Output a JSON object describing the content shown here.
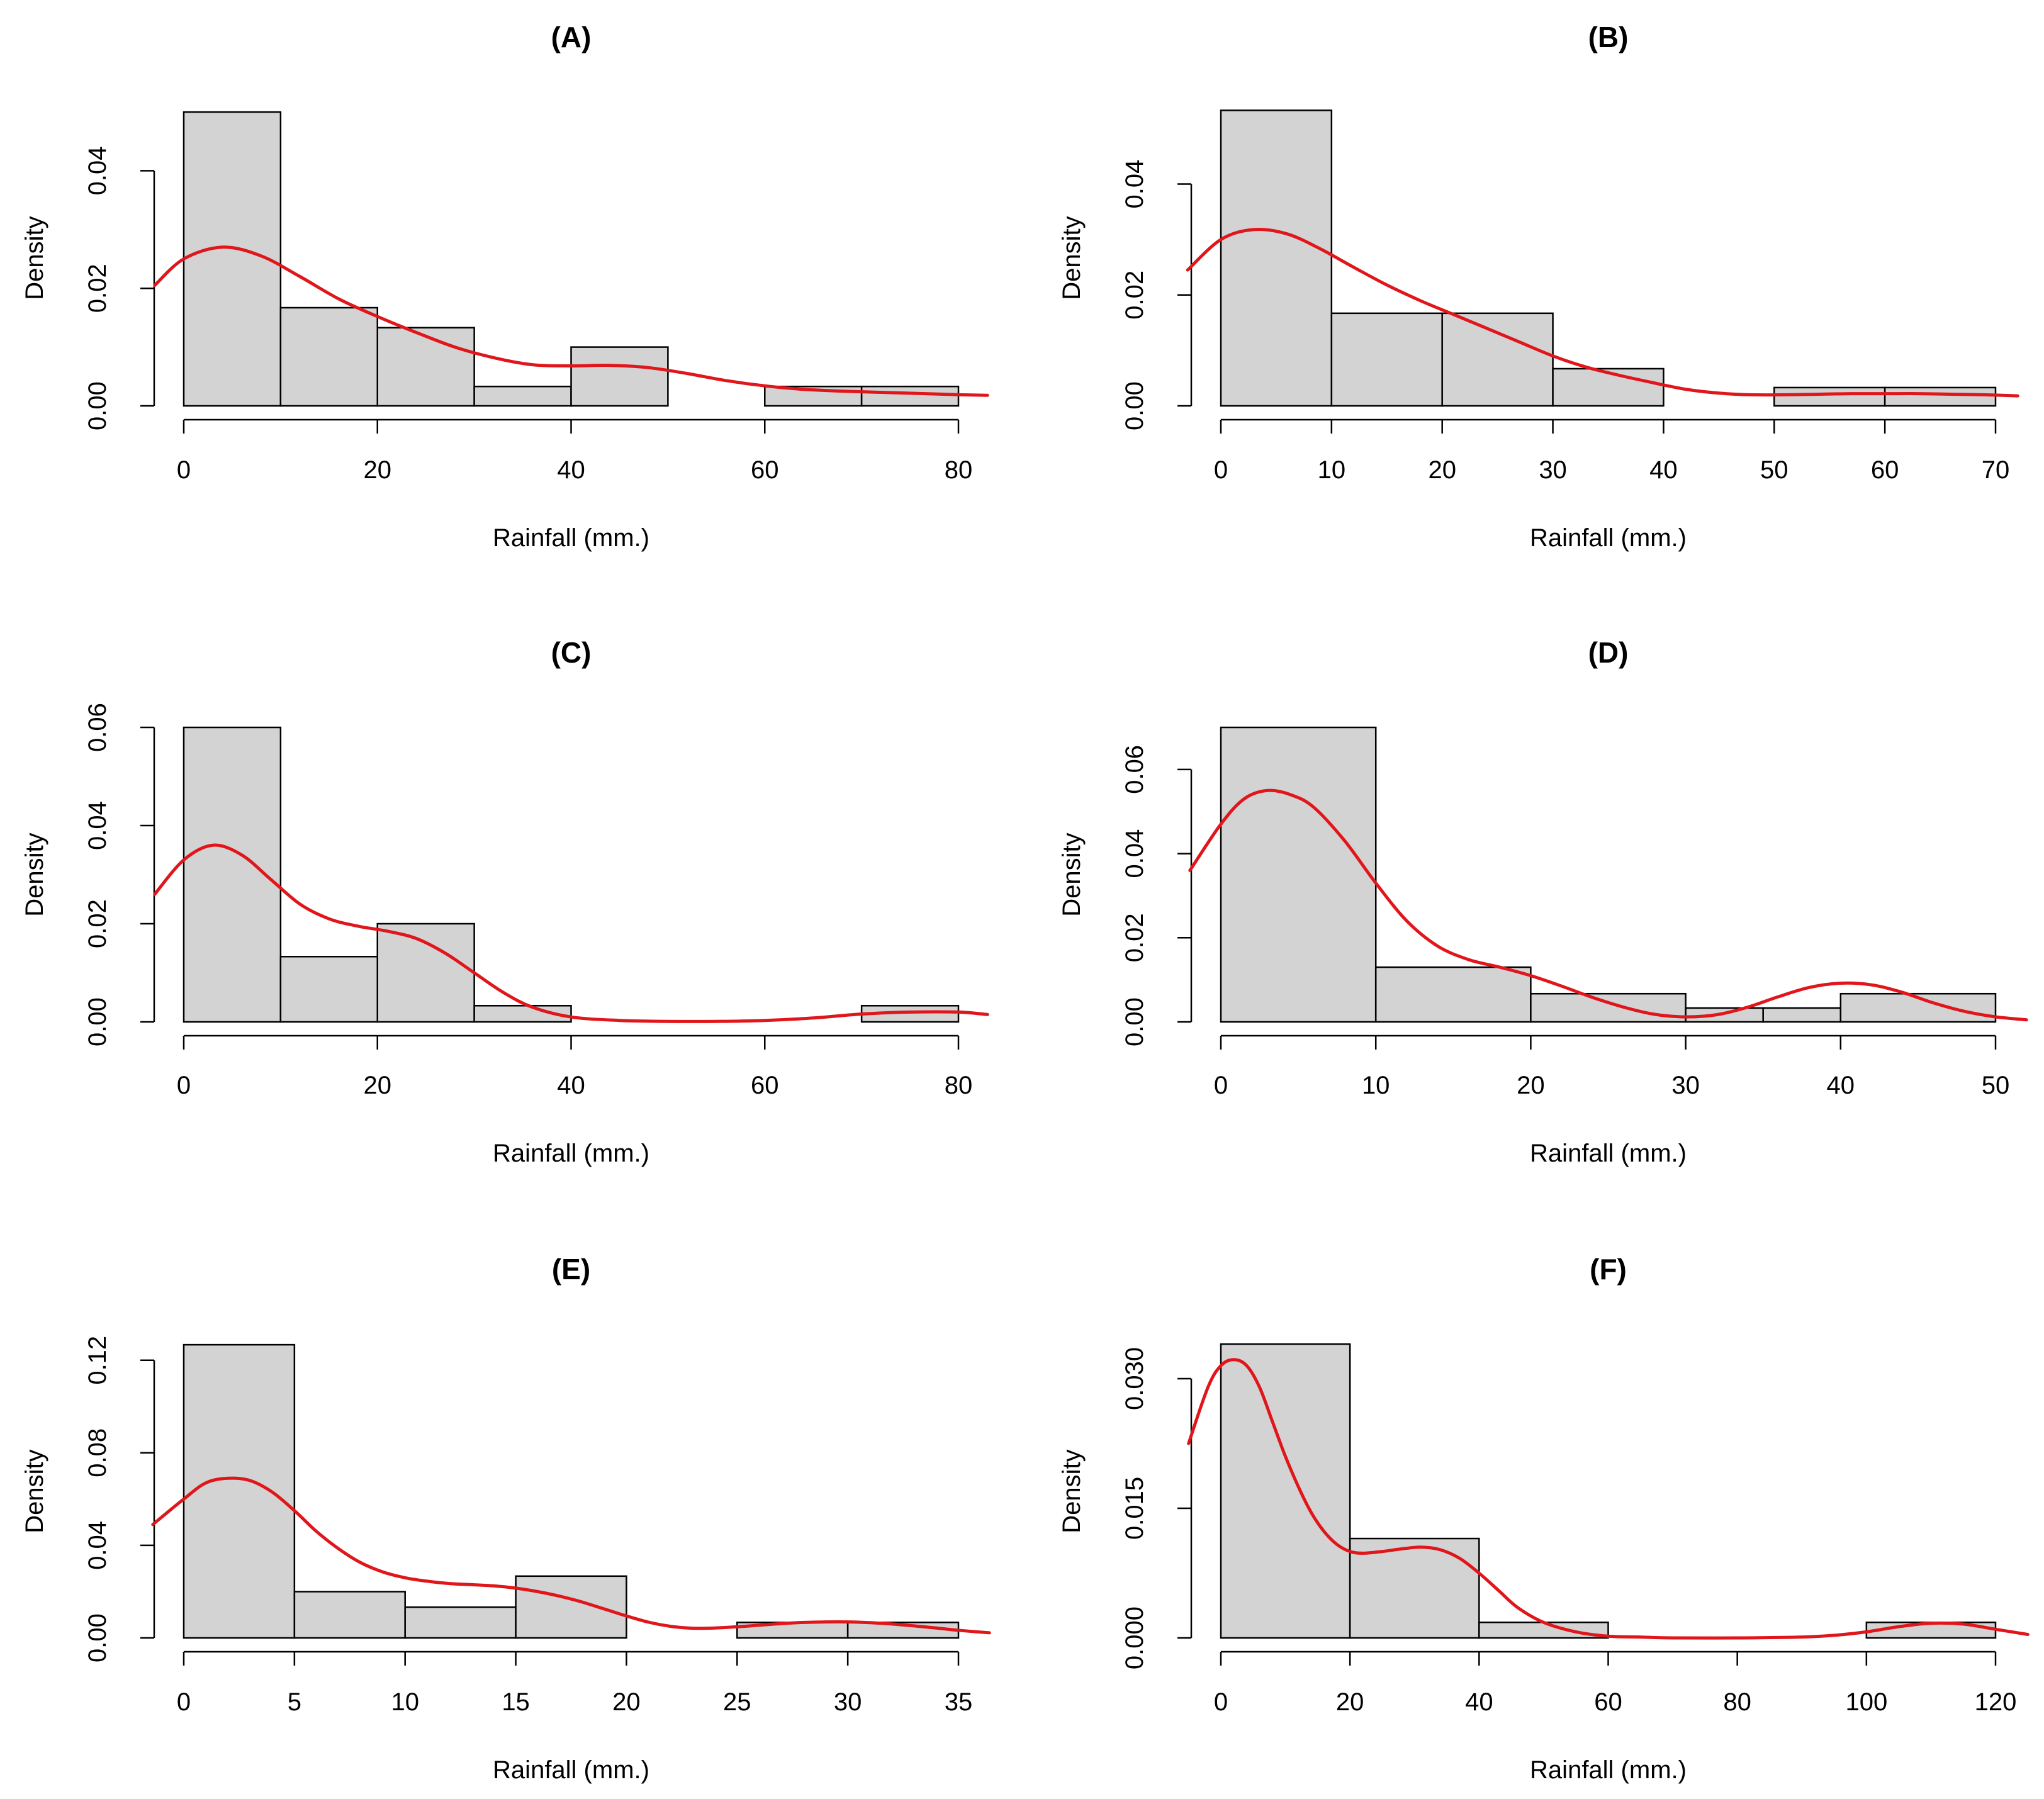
{
  "colors": {
    "bar_fill": "#d3d3d3",
    "bar_stroke": "#000000",
    "density": "#e0161b"
  },
  "chart_data": [
    {
      "type": "bar",
      "title": "(A)",
      "xlabel": "Rainfall (mm.)",
      "ylabel": "Density",
      "xlim": [
        0,
        80
      ],
      "ylim": [
        0,
        0.05
      ],
      "xticks": [
        0,
        20,
        40,
        60,
        80
      ],
      "yticks": [
        0.0,
        0.02,
        0.04
      ],
      "ytick_labels": [
        "0.00",
        "0.02",
        "0.04"
      ],
      "grid": false,
      "bins": [
        [
          0,
          10,
          0.05
        ],
        [
          10,
          20,
          0.0167
        ],
        [
          20,
          30,
          0.0133
        ],
        [
          30,
          40,
          0.0033
        ],
        [
          40,
          50,
          0.01
        ],
        [
          50,
          60,
          0
        ],
        [
          60,
          70,
          0.0033
        ],
        [
          70,
          80,
          0.0033
        ]
      ],
      "density": {
        "x": [
          -3,
          0,
          4,
          8,
          12,
          16,
          20,
          24,
          28,
          32,
          36,
          40,
          44,
          48,
          52,
          56,
          60,
          64,
          68,
          72,
          76,
          80,
          83
        ],
        "y": [
          0.0205,
          0.025,
          0.027,
          0.0255,
          0.022,
          0.0182,
          0.0152,
          0.0125,
          0.01,
          0.0082,
          0.007,
          0.0068,
          0.0069,
          0.0065,
          0.0055,
          0.0043,
          0.0034,
          0.0028,
          0.0025,
          0.0023,
          0.0021,
          0.0019,
          0.0018
        ]
      }
    },
    {
      "type": "bar",
      "title": "(B)",
      "xlabel": "Rainfall (mm.)",
      "ylabel": "Density",
      "xlim": [
        0,
        70
      ],
      "ylim": [
        0,
        0.053
      ],
      "xticks": [
        0,
        10,
        20,
        30,
        40,
        50,
        60,
        70
      ],
      "yticks": [
        0.0,
        0.02,
        0.04
      ],
      "ytick_labels": [
        "0.00",
        "0.02",
        "0.04"
      ],
      "grid": false,
      "bins": [
        [
          0,
          10,
          0.0533
        ],
        [
          10,
          20,
          0.0167
        ],
        [
          20,
          30,
          0.0167
        ],
        [
          30,
          40,
          0.0067
        ],
        [
          40,
          50,
          0
        ],
        [
          50,
          60,
          0.0033
        ],
        [
          60,
          70,
          0.0033
        ]
      ],
      "density": {
        "x": [
          -3,
          0,
          3,
          6,
          9,
          12,
          15,
          18,
          21,
          24,
          27,
          30,
          33,
          36,
          39,
          42,
          45,
          48,
          51,
          54,
          57,
          60,
          63,
          66,
          69,
          72
        ],
        "y": [
          0.0245,
          0.03,
          0.0318,
          0.031,
          0.0283,
          0.025,
          0.0218,
          0.019,
          0.0165,
          0.014,
          0.0115,
          0.009,
          0.007,
          0.0055,
          0.0042,
          0.003,
          0.0023,
          0.002,
          0.002,
          0.0021,
          0.0022,
          0.0022,
          0.0022,
          0.0021,
          0.002,
          0.0018
        ]
      }
    },
    {
      "type": "bar",
      "title": "(C)",
      "xlabel": "Rainfall (mm.)",
      "ylabel": "Density",
      "xlim": [
        0,
        80
      ],
      "ylim": [
        0,
        0.06
      ],
      "xticks": [
        0,
        20,
        40,
        60,
        80
      ],
      "yticks": [
        0.0,
        0.02,
        0.04,
        0.06
      ],
      "ytick_labels": [
        "0.00",
        "0.02",
        "0.04",
        "0.06"
      ],
      "grid": false,
      "bins": [
        [
          0,
          10,
          0.06
        ],
        [
          10,
          20,
          0.0133
        ],
        [
          20,
          30,
          0.02
        ],
        [
          30,
          40,
          0.0033
        ],
        [
          40,
          50,
          0
        ],
        [
          50,
          60,
          0
        ],
        [
          60,
          70,
          0
        ],
        [
          70,
          80,
          0.0033
        ]
      ],
      "density": {
        "x": [
          -3,
          0,
          3,
          6,
          9,
          12,
          15,
          18,
          21,
          24,
          27,
          30,
          33,
          36,
          40,
          45,
          50,
          55,
          60,
          65,
          70,
          75,
          80,
          83
        ],
        "y": [
          0.026,
          0.033,
          0.036,
          0.034,
          0.029,
          0.024,
          0.021,
          0.0195,
          0.0185,
          0.017,
          0.014,
          0.01,
          0.006,
          0.003,
          0.001,
          0.0003,
          0.0001,
          0.0001,
          0.0003,
          0.0008,
          0.0016,
          0.002,
          0.002,
          0.0015
        ]
      }
    },
    {
      "type": "bar",
      "title": "(D)",
      "xlabel": "Rainfall (mm.)",
      "ylabel": "Density",
      "xlim": [
        0,
        50
      ],
      "ylim": [
        0,
        0.07
      ],
      "xticks": [
        0,
        10,
        20,
        30,
        40,
        50
      ],
      "yticks": [
        0.0,
        0.02,
        0.04,
        0.06
      ],
      "ytick_labels": [
        "0.00",
        "0.02",
        "0.04",
        "0.06"
      ],
      "grid": false,
      "bins": [
        [
          0,
          10,
          0.07
        ],
        [
          10,
          20,
          0.013
        ],
        [
          20,
          30,
          0.0067
        ],
        [
          30,
          35,
          0.0033
        ],
        [
          35,
          40,
          0.0033
        ],
        [
          40,
          50,
          0.0067
        ]
      ],
      "density": {
        "x": [
          -2,
          0,
          1.5,
          3,
          4.5,
          6,
          8,
          10,
          12,
          14,
          16,
          18,
          20,
          22,
          24,
          26,
          28,
          30,
          32,
          34,
          36,
          38,
          40,
          42,
          44,
          46,
          48,
          50,
          52
        ],
        "y": [
          0.036,
          0.047,
          0.053,
          0.055,
          0.054,
          0.051,
          0.043,
          0.033,
          0.024,
          0.018,
          0.0148,
          0.013,
          0.011,
          0.0085,
          0.0058,
          0.0035,
          0.0018,
          0.0012,
          0.0017,
          0.0035,
          0.006,
          0.0082,
          0.0092,
          0.0088,
          0.007,
          0.0045,
          0.0025,
          0.0012,
          0.0005
        ]
      }
    },
    {
      "type": "bar",
      "title": "(E)",
      "xlabel": "Rainfall (mm.)",
      "ylabel": "Density",
      "xlim": [
        0,
        35
      ],
      "ylim": [
        0,
        0.127
      ],
      "xticks": [
        0,
        5,
        10,
        15,
        20,
        25,
        30,
        35
      ],
      "yticks": [
        0.0,
        0.04,
        0.08,
        0.12
      ],
      "ytick_labels": [
        "0.00",
        "0.04",
        "0.08",
        "0.12"
      ],
      "grid": false,
      "bins": [
        [
          0,
          5,
          0.1267
        ],
        [
          5,
          10,
          0.02
        ],
        [
          10,
          15,
          0.0133
        ],
        [
          15,
          20,
          0.0267
        ],
        [
          20,
          25,
          0
        ],
        [
          25,
          30,
          0.0067
        ],
        [
          30,
          35,
          0.0067
        ]
      ],
      "density": {
        "x": [
          -1.4,
          0,
          1,
          2,
          3,
          4,
          5,
          6,
          7,
          8,
          9,
          10,
          11,
          12,
          13,
          14,
          15,
          16,
          17,
          18,
          19,
          20,
          21,
          22,
          23,
          24,
          25,
          26,
          27,
          28,
          29,
          30,
          31,
          32,
          33,
          34,
          35,
          36.4
        ],
        "y": [
          0.049,
          0.06,
          0.067,
          0.069,
          0.068,
          0.063,
          0.055,
          0.046,
          0.0385,
          0.0325,
          0.0285,
          0.026,
          0.0245,
          0.0235,
          0.023,
          0.0225,
          0.0215,
          0.02,
          0.018,
          0.0155,
          0.0125,
          0.0095,
          0.0068,
          0.005,
          0.0042,
          0.0043,
          0.0048,
          0.0055,
          0.0062,
          0.0067,
          0.0069,
          0.0069,
          0.0066,
          0.006,
          0.0052,
          0.0043,
          0.0033,
          0.0022
        ]
      }
    },
    {
      "type": "bar",
      "title": "(F)",
      "xlabel": "Rainfall (mm.)",
      "ylabel": "Density",
      "xlim": [
        0,
        120
      ],
      "ylim": [
        0,
        0.034
      ],
      "xticks": [
        0,
        20,
        40,
        60,
        80,
        100,
        120
      ],
      "yticks": [
        0.0,
        0.015,
        0.03
      ],
      "ytick_labels": [
        "0.000",
        "0.015",
        "0.030"
      ],
      "grid": false,
      "bins": [
        [
          0,
          20,
          0.034
        ],
        [
          20,
          40,
          0.0115
        ],
        [
          40,
          60,
          0.0018
        ],
        [
          60,
          80,
          0
        ],
        [
          80,
          100,
          0
        ],
        [
          100,
          120,
          0.0018
        ]
      ],
      "density": {
        "x": [
          -5,
          -2,
          0,
          2,
          4,
          6,
          8,
          10,
          12,
          14,
          16,
          18,
          20,
          22,
          25,
          28,
          31,
          34,
          37,
          40,
          43,
          46,
          50,
          55,
          60,
          65,
          70,
          80,
          90,
          95,
          100,
          105,
          110,
          115,
          120,
          125
        ],
        "y": [
          0.0225,
          0.029,
          0.0315,
          0.0322,
          0.0315,
          0.029,
          0.025,
          0.021,
          0.0175,
          0.0145,
          0.0123,
          0.0108,
          0.01,
          0.0098,
          0.01,
          0.0103,
          0.0105,
          0.0102,
          0.0092,
          0.0075,
          0.0055,
          0.0035,
          0.0018,
          0.0007,
          0.0002,
          0.0001,
          0.0,
          0.0,
          0.0001,
          0.0003,
          0.0007,
          0.0013,
          0.0017,
          0.0016,
          0.001,
          0.0004
        ]
      }
    }
  ]
}
